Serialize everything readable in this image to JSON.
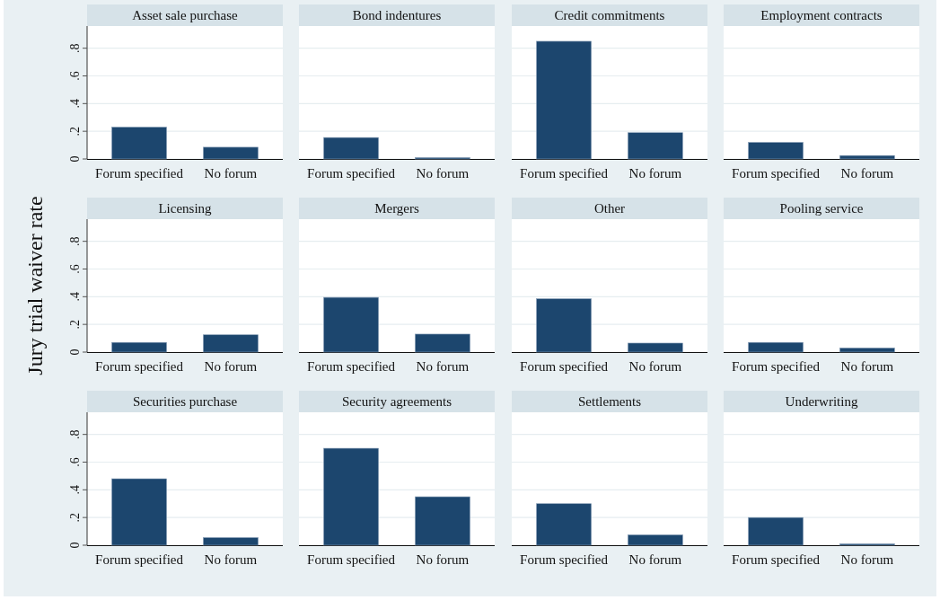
{
  "chart_data": [
    {
      "type": "bar",
      "title": "Asset sale purchase",
      "categories": [
        "Forum specified",
        "No forum"
      ],
      "values": [
        0.23,
        0.085
      ],
      "color": "#1c466e",
      "ylim": [
        0,
        0.96
      ],
      "yticks": [
        {
          "value": 0,
          "label": "0"
        },
        {
          "value": 0.2,
          "label": ".2"
        },
        {
          "value": 0.4,
          "label": ".4"
        },
        {
          "value": 0.6,
          "label": ".6"
        },
        {
          "value": 0.8,
          "label": ".8"
        }
      ],
      "grid": "y"
    },
    {
      "type": "bar",
      "title": "Bond indentures",
      "categories": [
        "Forum specified",
        "No forum"
      ],
      "values": [
        0.155,
        0.01
      ],
      "color": "#1c466e",
      "ylim": [
        0,
        0.96
      ],
      "yticks": [
        {
          "value": 0,
          "label": null
        },
        {
          "value": 0.2,
          "label": null
        },
        {
          "value": 0.4,
          "label": null
        },
        {
          "value": 0.6,
          "label": null
        },
        {
          "value": 0.8,
          "label": null
        }
      ],
      "grid": "y",
      "tick_labels": "x"
    },
    {
      "type": "bar",
      "title": "Credit commitments",
      "categories": [
        "Forum specified",
        "No forum"
      ],
      "values": [
        0.85,
        0.19
      ],
      "color": "#1c466e",
      "ylim": [
        0,
        0.96
      ],
      "yticks": [
        {
          "value": 0,
          "label": null
        },
        {
          "value": 0.2,
          "label": null
        },
        {
          "value": 0.4,
          "label": null
        },
        {
          "value": 0.6,
          "label": null
        },
        {
          "value": 0.8,
          "label": null
        }
      ],
      "grid": "y",
      "tick_labels": "x"
    },
    {
      "type": "bar",
      "title": "Employment contracts",
      "categories": [
        "Forum specified",
        "No forum"
      ],
      "values": [
        0.12,
        0.025
      ],
      "color": "#1c466e",
      "ylim": [
        0,
        0.96
      ],
      "yticks": [
        {
          "value": 0,
          "label": null
        },
        {
          "value": 0.2,
          "label": null
        },
        {
          "value": 0.4,
          "label": null
        },
        {
          "value": 0.6,
          "label": null
        },
        {
          "value": 0.8,
          "label": null
        }
      ],
      "grid": "y",
      "tick_labels": "x"
    },
    {
      "type": "bar",
      "title": "Licensing",
      "ylabel": "Jury trial waiver rate",
      "categories": [
        "Forum specified",
        "No forum"
      ],
      "values": [
        0.07,
        0.125
      ],
      "color": "#1c466e",
      "ylim": [
        0,
        0.96
      ],
      "yticks": [
        {
          "value": 0,
          "label": "0"
        },
        {
          "value": 0.2,
          "label": ".2"
        },
        {
          "value": 0.4,
          "label": ".4"
        },
        {
          "value": 0.6,
          "label": ".6"
        },
        {
          "value": 0.8,
          "label": ".8"
        }
      ],
      "grid": "y"
    },
    {
      "type": "bar",
      "title": "Mergers",
      "categories": [
        "Forum specified",
        "No forum"
      ],
      "values": [
        0.395,
        0.13
      ],
      "color": "#1c466e",
      "ylim": [
        0,
        0.96
      ],
      "yticks": [
        {
          "value": 0,
          "label": null
        },
        {
          "value": 0.2,
          "label": null
        },
        {
          "value": 0.4,
          "label": null
        },
        {
          "value": 0.6,
          "label": null
        },
        {
          "value": 0.8,
          "label": null
        }
      ],
      "grid": "y",
      "tick_labels": "x"
    },
    {
      "type": "bar",
      "title": "Other",
      "categories": [
        "Forum specified",
        "No forum"
      ],
      "values": [
        0.385,
        0.065
      ],
      "color": "#1c466e",
      "ylim": [
        0,
        0.96
      ],
      "yticks": [
        {
          "value": 0,
          "label": null
        },
        {
          "value": 0.2,
          "label": null
        },
        {
          "value": 0.4,
          "label": null
        },
        {
          "value": 0.6,
          "label": null
        },
        {
          "value": 0.8,
          "label": null
        }
      ],
      "grid": "y",
      "tick_labels": "x"
    },
    {
      "type": "bar",
      "title": "Pooling service",
      "categories": [
        "Forum specified",
        "No forum"
      ],
      "values": [
        0.07,
        0.03
      ],
      "color": "#1c466e",
      "ylim": [
        0,
        0.96
      ],
      "yticks": [
        {
          "value": 0,
          "label": null
        },
        {
          "value": 0.2,
          "label": null
        },
        {
          "value": 0.4,
          "label": null
        },
        {
          "value": 0.6,
          "label": null
        },
        {
          "value": 0.8,
          "label": null
        }
      ],
      "grid": "y",
      "tick_labels": "x"
    },
    {
      "type": "bar",
      "title": "Securities purchase",
      "categories": [
        "Forum specified",
        "No forum"
      ],
      "values": [
        0.48,
        0.055
      ],
      "color": "#1c466e",
      "ylim": [
        0,
        0.96
      ],
      "yticks": [
        {
          "value": 0,
          "label": "0"
        },
        {
          "value": 0.2,
          "label": ".2"
        },
        {
          "value": 0.4,
          "label": ".4"
        },
        {
          "value": 0.6,
          "label": ".6"
        },
        {
          "value": 0.8,
          "label": ".8"
        }
      ],
      "grid": "y"
    },
    {
      "type": "bar",
      "title": "Security agreements",
      "categories": [
        "Forum specified",
        "No forum"
      ],
      "values": [
        0.7,
        0.35
      ],
      "color": "#1c466e",
      "ylim": [
        0,
        0.96
      ],
      "yticks": [
        {
          "value": 0,
          "label": null
        },
        {
          "value": 0.2,
          "label": null
        },
        {
          "value": 0.4,
          "label": null
        },
        {
          "value": 0.6,
          "label": null
        },
        {
          "value": 0.8,
          "label": null
        }
      ],
      "grid": "y",
      "tick_labels": "x"
    },
    {
      "type": "bar",
      "title": "Settlements",
      "categories": [
        "Forum specified",
        "No forum"
      ],
      "values": [
        0.3,
        0.075
      ],
      "color": "#1c466e",
      "ylim": [
        0,
        0.96
      ],
      "yticks": [
        {
          "value": 0,
          "label": null
        },
        {
          "value": 0.2,
          "label": null
        },
        {
          "value": 0.4,
          "label": null
        },
        {
          "value": 0.6,
          "label": null
        },
        {
          "value": 0.8,
          "label": null
        }
      ],
      "grid": "y",
      "tick_labels": "x"
    },
    {
      "type": "bar",
      "title": "Underwriting",
      "categories": [
        "Forum specified",
        "No forum"
      ],
      "values": [
        0.2,
        0.01
      ],
      "color": "#1c466e",
      "ylim": [
        0,
        0.96
      ],
      "yticks": [
        {
          "value": 0,
          "label": null
        },
        {
          "value": 0.2,
          "label": null
        },
        {
          "value": 0.4,
          "label": null
        },
        {
          "value": 0.6,
          "label": null
        },
        {
          "value": 0.8,
          "label": null
        }
      ],
      "grid": "y",
      "tick_labels": "x"
    }
  ]
}
